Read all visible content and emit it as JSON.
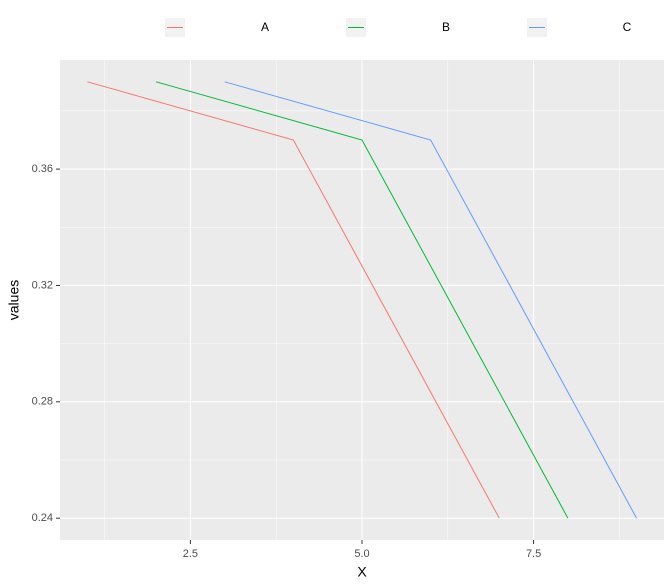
{
  "chart_data": {
    "type": "line",
    "x_label": "X",
    "y_label": "values",
    "series": [
      {
        "name": "A",
        "color": "#F8766D",
        "x": [
          1,
          4,
          7
        ],
        "values": [
          0.39,
          0.37,
          0.24
        ]
      },
      {
        "name": "B",
        "color": "#00BA38",
        "x": [
          2,
          5,
          8
        ],
        "values": [
          0.39,
          0.37,
          0.24
        ]
      },
      {
        "name": "C",
        "color": "#619CFF",
        "x": [
          3,
          6,
          9
        ],
        "values": [
          0.39,
          0.37,
          0.24
        ]
      }
    ],
    "xlim": [
      0.6,
      9.4
    ],
    "xticks": [
      2.5,
      {
        "value": 5,
        "label": "5.0"
      },
      7.5
    ],
    "ylim": [
      0.2325,
      0.3975
    ],
    "yticks": [
      0.24,
      0.28,
      0.32,
      0.36
    ],
    "grid": true,
    "legend_position": "top"
  }
}
